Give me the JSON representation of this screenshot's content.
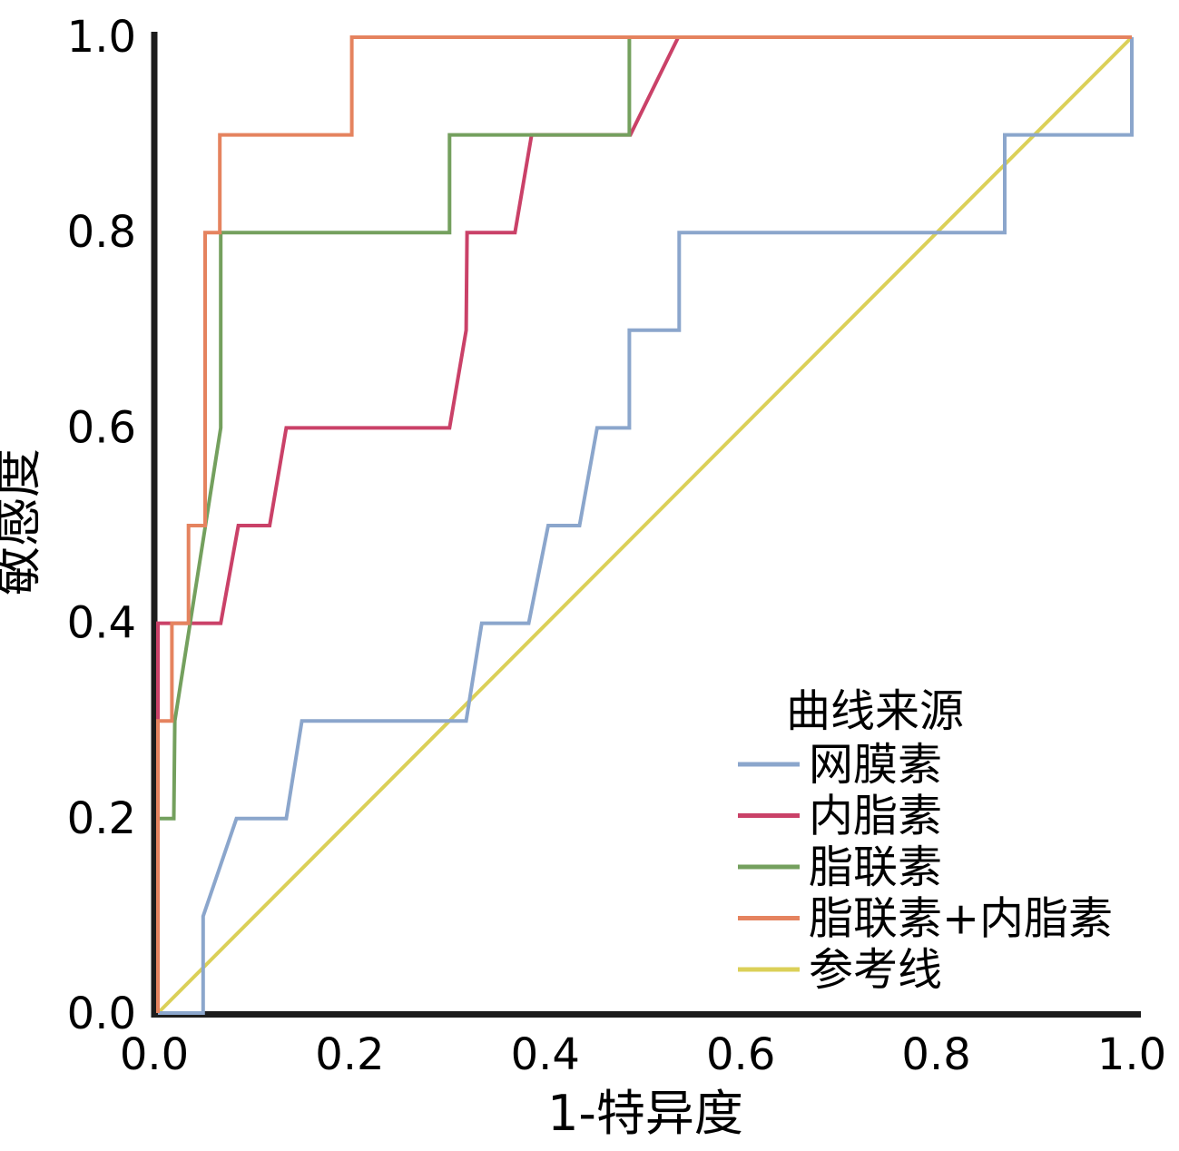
{
  "figure": {
    "background": "#ffffff",
    "axis_color": "#1c1c1c"
  },
  "chart_data": {
    "type": "line",
    "subtype": "roc-curve",
    "title": "",
    "xlabel": "1-特异度",
    "ylabel": "敏感度",
    "xlim": [
      0,
      1
    ],
    "ylim": [
      0,
      1
    ],
    "grid": false,
    "x_ticks": [
      "0.0",
      "0.2",
      "0.4",
      "0.6",
      "0.8",
      "1.0"
    ],
    "x_tick_values": [
      0,
      0.2,
      0.4,
      0.6,
      0.8,
      1.0
    ],
    "y_ticks": [
      "0.0",
      "0.2",
      "0.4",
      "0.6",
      "0.8",
      "1.0"
    ],
    "y_tick_values": [
      0,
      0.2,
      0.4,
      0.6,
      0.8,
      1.0
    ],
    "legend": {
      "title": "曲线来源",
      "position": "inside-bottom-right",
      "items": [
        {
          "label": "网膜素",
          "color": "#8ba6cc"
        },
        {
          "label": "内脂素",
          "color": "#ca4168"
        },
        {
          "label": "脂联素",
          "color": "#74a05e"
        },
        {
          "label": "脂联素+内脂素",
          "color": "#e5835f"
        },
        {
          "label": "参考线",
          "color": "#dbd058"
        }
      ]
    },
    "series": [
      {
        "name": "网膜素",
        "color": "#8ba6cc",
        "points": [
          [
            0,
            0
          ],
          [
            0.05,
            0
          ],
          [
            0.05,
            0.1
          ],
          [
            0.084,
            0.2
          ],
          [
            0.135,
            0.2
          ],
          [
            0.151,
            0.3
          ],
          [
            0.319,
            0.3
          ],
          [
            0.335,
            0.4
          ],
          [
            0.383,
            0.4
          ],
          [
            0.403,
            0.5
          ],
          [
            0.435,
            0.5
          ],
          [
            0.453,
            0.6
          ],
          [
            0.486,
            0.6
          ],
          [
            0.486,
            0.7
          ],
          [
            0.537,
            0.7
          ],
          [
            0.537,
            0.8
          ],
          [
            0.87,
            0.8
          ],
          [
            0.87,
            0.9
          ],
          [
            1,
            0.9
          ],
          [
            1,
            1
          ]
        ]
      },
      {
        "name": "内脂素",
        "color": "#ca4168",
        "points": [
          [
            0,
            0
          ],
          [
            0,
            0.4
          ],
          [
            0.068,
            0.4
          ],
          [
            0.086,
            0.5
          ],
          [
            0.118,
            0.5
          ],
          [
            0.135,
            0.6
          ],
          [
            0.302,
            0.6
          ],
          [
            0.319,
            0.7
          ],
          [
            0.32,
            0.8
          ],
          [
            0.369,
            0.8
          ],
          [
            0.386,
            0.9
          ],
          [
            0.487,
            0.9
          ],
          [
            0.536,
            1
          ],
          [
            1,
            1
          ]
        ]
      },
      {
        "name": "脂联素",
        "color": "#74a05e",
        "points": [
          [
            0,
            0
          ],
          [
            0,
            0.2
          ],
          [
            0.02,
            0.2
          ],
          [
            0.021,
            0.3
          ],
          [
            0.068,
            0.6
          ],
          [
            0.068,
            0.8
          ],
          [
            0.302,
            0.8
          ],
          [
            0.302,
            0.9
          ],
          [
            0.486,
            0.9
          ],
          [
            0.486,
            1
          ],
          [
            1,
            1
          ]
        ]
      },
      {
        "name": "脂联素+内脂素",
        "color": "#e5835f",
        "points": [
          [
            0,
            0
          ],
          [
            0,
            0.3
          ],
          [
            0.018,
            0.3
          ],
          [
            0.018,
            0.4
          ],
          [
            0.035,
            0.4
          ],
          [
            0.035,
            0.5
          ],
          [
            0.052,
            0.5
          ],
          [
            0.052,
            0.8
          ],
          [
            0.067,
            0.8
          ],
          [
            0.067,
            0.9
          ],
          [
            0.202,
            0.9
          ],
          [
            0.202,
            1
          ],
          [
            1,
            1
          ]
        ]
      },
      {
        "name": "参考线",
        "color": "#dbd058",
        "points": [
          [
            0,
            0
          ],
          [
            1,
            1
          ]
        ]
      }
    ],
    "draw_order": [
      4,
      0,
      1,
      2,
      3
    ]
  }
}
